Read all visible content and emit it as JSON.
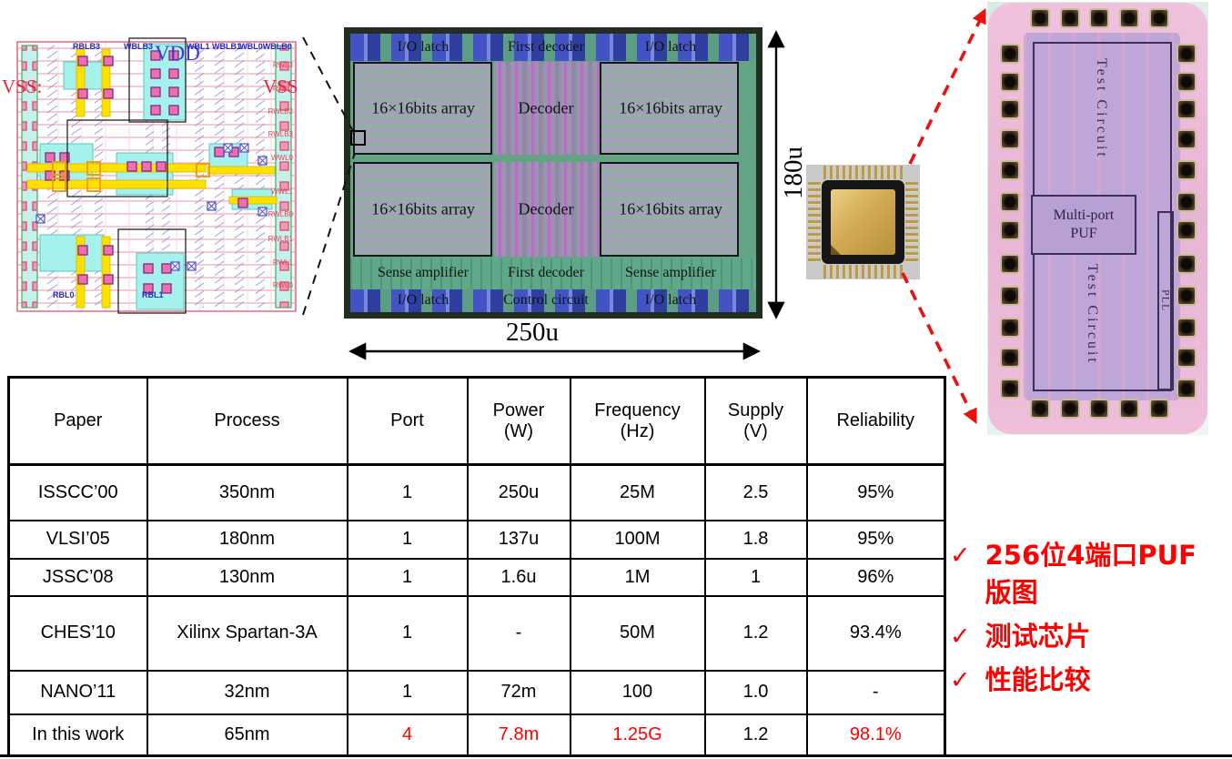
{
  "layout_cell": {
    "vss_left": "VSS:",
    "vdd": "VDD",
    "vss_right": "VSS",
    "top_labels": [
      "RBLB3",
      "WBLB3",
      "WBL1 WBLB1",
      "WBL0WBLB0"
    ],
    "right_labels": [
      "RWL3",
      "RWL2",
      "RWLB2",
      "RWLB3",
      "WWL0",
      "WWL1",
      "RWLB0",
      "RWLB1",
      "RWL1",
      "RWL0"
    ],
    "bottom_labels": [
      "RBL0",
      "RBL1"
    ]
  },
  "die_photo": {
    "io_latch": "I/O latch",
    "first_decoder": "First decoder",
    "decoder": "Decoder",
    "array": "16×16bits array",
    "sense_amplifier": "Sense amplifier",
    "control_circuit": "Control circuit",
    "width_label": "250u",
    "height_label": "180u"
  },
  "right_die": {
    "test_circuit": "Test Circuit",
    "multi_port_line1": "Multi-port",
    "multi_port_line2": "PUF",
    "pll": "PLL"
  },
  "table": {
    "headers": [
      {
        "label": "Paper",
        "unit": ""
      },
      {
        "label": "Process",
        "unit": ""
      },
      {
        "label": "Port",
        "unit": ""
      },
      {
        "label": "Power",
        "unit": "(W)"
      },
      {
        "label": "Frequency",
        "unit": "(Hz)"
      },
      {
        "label": "Supply",
        "unit": "(V)"
      },
      {
        "label": "Reliability",
        "unit": ""
      }
    ],
    "field_order": [
      "paper",
      "process",
      "port",
      "power",
      "frequency",
      "supply",
      "reliability"
    ],
    "rows": [
      {
        "values": {
          "paper": "ISSCC’00",
          "process": "350nm",
          "port": "1",
          "power": "250u",
          "frequency": "25M",
          "supply": "2.5",
          "reliability": "95%"
        },
        "red_fields": []
      },
      {
        "values": {
          "paper": "VLSI’05",
          "process": "180nm",
          "port": "1",
          "power": "137u",
          "frequency": "100M",
          "supply": "1.8",
          "reliability": "95%"
        },
        "red_fields": []
      },
      {
        "values": {
          "paper": "JSSC’08",
          "process": "130nm",
          "port": "1",
          "power": "1.6u",
          "frequency": "1M",
          "supply": "1",
          "reliability": "96%"
        },
        "red_fields": []
      },
      {
        "values": {
          "paper": "CHES’10",
          "process": "Xilinx Spartan-3A",
          "port": "1",
          "power": "-",
          "frequency": "50M",
          "supply": "1.2",
          "reliability": "93.4%"
        },
        "red_fields": []
      },
      {
        "values": {
          "paper": "NANO’11",
          "process": "32nm",
          "port": "1",
          "power": "72m",
          "frequency": "100",
          "supply": "1.0",
          "reliability": "-"
        },
        "red_fields": []
      },
      {
        "values": {
          "paper": "In this work",
          "process": "65nm",
          "port": "4",
          "power": "7.8m",
          "frequency": "1.25G",
          "supply": "1.2",
          "reliability": "98.1%"
        },
        "red_fields": [
          "port",
          "power",
          "frequency",
          "reliability"
        ]
      }
    ],
    "accent_red": "#ff0000"
  },
  "bullets": {
    "check_glyph": "✓",
    "color": "#ff0000",
    "items": [
      {
        "lines": [
          "256位4端口PUF",
          "版图"
        ]
      },
      {
        "lines": [
          "测试芯片"
        ]
      },
      {
        "lines": [
          "性能比较"
        ]
      }
    ]
  }
}
